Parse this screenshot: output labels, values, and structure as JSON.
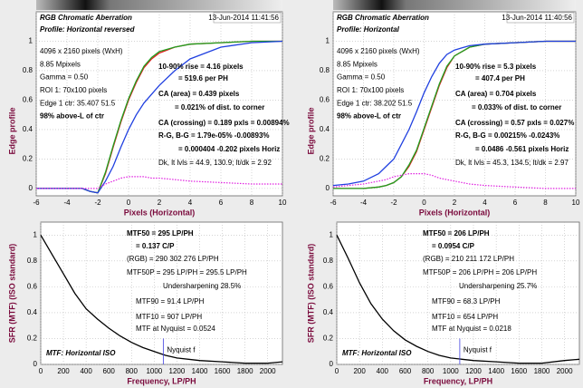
{
  "chart_data": [
    {
      "type": "line",
      "header": {
        "title": "RGB Chromatic Aberration",
        "date": "13-Jun-2014 11:41:56"
      },
      "profile": "Profile: Horizontal reversed",
      "info": [
        "4096 x 2160 pixels (WxH)",
        "8.85 Mpixels",
        "Gamma = 0.50",
        "ROI 1: 70x100 pixels",
        "Edge 1 ctr: 35.407  51.5",
        "98% above-L of ctr"
      ],
      "results": [
        {
          "text": "10-90% rise = 4.16 pixels",
          "color": "#000000"
        },
        {
          "text": "= 519.6 per PH",
          "color": "#000000"
        },
        {
          "text": "CA (area) = 0.439 pixels",
          "color": "#d020c0"
        },
        {
          "text": "= 0.021% of dist. to corner",
          "color": "#d020c0"
        },
        {
          "text": "CA (crossing) = 0.189 pxls = 0.00894%",
          "color": "#d020c0"
        },
        {
          "text": "R-G, B-G = 1.79e-05%  -0.00893%",
          "color": "#d020c0"
        },
        {
          "text": "= 0.000404  -0.202 pixels Horiz",
          "color": "#d020c0"
        },
        {
          "text": "Dk, lt lvls = 44.9, 130.9;  lt/dk = 2.92",
          "color": "#808080"
        }
      ],
      "xlabel": "Pixels (Horizontal)",
      "ylabel": "Edge profile",
      "x": [
        -6,
        -5,
        -4,
        -3,
        -2.5,
        -2,
        -1.5,
        -1,
        -0.5,
        0,
        0.5,
        1,
        1.5,
        2,
        3,
        4,
        6,
        8,
        10
      ],
      "series": [
        {
          "color": "#e02020",
          "style": "solid",
          "values": [
            0,
            0,
            0,
            0,
            -0.02,
            -0.03,
            0.1,
            0.28,
            0.45,
            0.6,
            0.72,
            0.82,
            0.88,
            0.92,
            0.96,
            0.98,
            0.99,
            1,
            1
          ]
        },
        {
          "color": "#20a020",
          "style": "solid",
          "values": [
            0,
            0,
            0,
            0,
            -0.02,
            -0.03,
            0.11,
            0.29,
            0.46,
            0.61,
            0.73,
            0.83,
            0.89,
            0.93,
            0.96,
            0.98,
            0.99,
            1,
            1
          ]
        },
        {
          "color": "#2040e0",
          "style": "solid",
          "values": [
            0,
            0,
            0,
            0,
            -0.02,
            -0.03,
            0.05,
            0.15,
            0.28,
            0.4,
            0.5,
            0.58,
            0.64,
            0.7,
            0.8,
            0.88,
            0.96,
            0.99,
            1
          ]
        },
        {
          "color": "#e020e0",
          "style": "dotted",
          "values": [
            0,
            0,
            0,
            0,
            0,
            0,
            0.03,
            0.05,
            0.07,
            0.08,
            0.08,
            0.08,
            0.07,
            0.07,
            0.06,
            0.05,
            0.04,
            0.03,
            0.03
          ]
        }
      ],
      "xlim": [
        -6,
        10
      ],
      "ylim": [
        -0.05,
        1.2
      ],
      "xticks": [
        -6,
        -4,
        -2,
        0,
        2,
        4,
        6,
        8,
        10
      ],
      "yticks": [
        0,
        0.2,
        0.4,
        0.6,
        0.8,
        1
      ],
      "grid": true
    },
    {
      "type": "line",
      "header": {
        "title": "RGB Chromatic Aberration",
        "date": "13-Jun-2014 11:40:56"
      },
      "profile": "Profile: Horizontal",
      "info": [
        "4096 x 2160 pixels (WxH)",
        "8.85 Mpixels",
        "Gamma = 0.50",
        "ROI 1: 70x100 pixels",
        "Edge 1 ctr: 38.202  51.5",
        "98% above-L of ctr"
      ],
      "results": [
        {
          "text": "10-90% rise = 5.3 pixels",
          "color": "#000000"
        },
        {
          "text": "= 407.4 per PH",
          "color": "#000000"
        },
        {
          "text": "CA (area) = 0.704 pixels",
          "color": "#d020c0"
        },
        {
          "text": "= 0.033% of dist. to corner",
          "color": "#d020c0"
        },
        {
          "text": "CA (crossing) = 0.57 pxls = 0.027%",
          "color": "#d020c0"
        },
        {
          "text": "R-G, B-G = 0.00215%  -0.0243%",
          "color": "#d020c0"
        },
        {
          "text": "= 0.0486  -0.561 pixels Horiz",
          "color": "#d020c0"
        },
        {
          "text": "Dk, lt lvls = 45.3, 134.5;  lt/dk = 2.97",
          "color": "#808080"
        }
      ],
      "xlabel": "Pixels (Horizontal)",
      "ylabel": "Edge profile",
      "x": [
        -6,
        -5,
        -4,
        -3,
        -2.5,
        -2,
        -1.5,
        -1,
        -0.5,
        0,
        0.5,
        1,
        1.5,
        2,
        3,
        4,
        6,
        8,
        10
      ],
      "series": [
        {
          "color": "#e02020",
          "style": "solid",
          "values": [
            0,
            0,
            0,
            0.01,
            0.02,
            0.04,
            0.08,
            0.15,
            0.25,
            0.4,
            0.55,
            0.7,
            0.82,
            0.9,
            0.96,
            0.98,
            0.99,
            1,
            1
          ]
        },
        {
          "color": "#20a020",
          "style": "solid",
          "values": [
            0,
            0,
            0,
            0.01,
            0.02,
            0.04,
            0.08,
            0.16,
            0.26,
            0.41,
            0.56,
            0.71,
            0.83,
            0.9,
            0.96,
            0.98,
            0.99,
            1,
            1
          ]
        },
        {
          "color": "#2040e0",
          "style": "solid",
          "values": [
            0.02,
            0.03,
            0.05,
            0.1,
            0.15,
            0.2,
            0.3,
            0.4,
            0.52,
            0.65,
            0.76,
            0.85,
            0.91,
            0.94,
            0.97,
            0.98,
            0.99,
            1,
            1
          ]
        },
        {
          "color": "#e020e0",
          "style": "dotted",
          "values": [
            0.01,
            0.02,
            0.03,
            0.05,
            0.06,
            0.08,
            0.09,
            0.1,
            0.1,
            0.1,
            0.09,
            0.07,
            0.06,
            0.05,
            0.03,
            0.02,
            0.01,
            0,
            0
          ]
        }
      ],
      "xlim": [
        -6,
        10
      ],
      "ylim": [
        -0.05,
        1.2
      ],
      "xticks": [
        -6,
        -4,
        -2,
        0,
        2,
        4,
        6,
        8,
        10
      ],
      "yticks": [
        0,
        0.2,
        0.4,
        0.6,
        0.8,
        1
      ],
      "grid": true
    },
    {
      "type": "line",
      "results": [
        {
          "text": "MTF50 = 295 LP/PH",
          "color": "#000000"
        },
        {
          "text": "= 0.137 C/P",
          "color": "#000000"
        },
        {
          "text": "(RGB) = 290  302  276 LP/PH",
          "color": "#d02020"
        },
        {
          "text": "MTF50P = 295 LP/PH = 295.5 LP/PH",
          "color": "#000000"
        },
        {
          "text": "Undersharpening 28.5%",
          "color": "#d02020"
        },
        {
          "text": "MTF90 = 91.4 LP/PH",
          "color": "#000000"
        },
        {
          "text": "MTF10 = 907 LP/PH",
          "color": "#000000"
        },
        {
          "text": "MTF at Nyquist = 0.0524",
          "color": "#404040"
        }
      ],
      "caption": "MTF: Horizontal ISO",
      "nyquist": {
        "x": 1080,
        "label": "Nyquist f",
        "color": "#4040e0"
      },
      "xlabel": "Frequency, LP/PH",
      "ylabel": "SFR (MTF) (ISO standard)",
      "x": [
        0,
        100,
        200,
        300,
        400,
        500,
        600,
        700,
        800,
        900,
        1000,
        1100,
        1200,
        1400,
        1600,
        1800,
        2000,
        2130
      ],
      "series": [
        {
          "color": "#000000",
          "style": "solid",
          "values": [
            1,
            0.85,
            0.7,
            0.55,
            0.43,
            0.35,
            0.28,
            0.22,
            0.17,
            0.13,
            0.1,
            0.07,
            0.05,
            0.03,
            0.02,
            0.01,
            0.01,
            0.02
          ]
        }
      ],
      "xlim": [
        0,
        2130
      ],
      "ylim": [
        0,
        1.1
      ],
      "xticks": [
        0,
        200,
        400,
        600,
        800,
        1000,
        1200,
        1400,
        1600,
        1800,
        2000
      ],
      "yticks": [
        0,
        0.2,
        0.4,
        0.6,
        0.8,
        1
      ],
      "grid": true
    },
    {
      "type": "line",
      "results": [
        {
          "text": "MTF50 = 206 LP/PH",
          "color": "#000000"
        },
        {
          "text": "= 0.0954 C/P",
          "color": "#000000"
        },
        {
          "text": "(RGB) = 210  211  172 LP/PH",
          "color": "#d02020"
        },
        {
          "text": "MTF50P = 206 LP/PH = 206 LP/PH",
          "color": "#000000"
        },
        {
          "text": "Undersharpening 25.7%",
          "color": "#d02020"
        },
        {
          "text": "MTF90 = 68.3 LP/PH",
          "color": "#000000"
        },
        {
          "text": "MTF10 = 654 LP/PH",
          "color": "#000000"
        },
        {
          "text": "MTF at Nyquist = 0.0218",
          "color": "#404040"
        }
      ],
      "caption": "MTF: Horizontal ISO",
      "nyquist": {
        "x": 1080,
        "label": "Nyquist f",
        "color": "#4040e0"
      },
      "xlabel": "Frequency, LP/PH",
      "ylabel": "SFR (MTF) (ISO standard)",
      "x": [
        0,
        100,
        200,
        300,
        400,
        500,
        600,
        700,
        800,
        900,
        1000,
        1100,
        1200,
        1400,
        1600,
        1800,
        2000,
        2130
      ],
      "series": [
        {
          "color": "#000000",
          "style": "solid",
          "values": [
            1,
            0.82,
            0.63,
            0.47,
            0.35,
            0.26,
            0.19,
            0.14,
            0.1,
            0.07,
            0.05,
            0.04,
            0.03,
            0.02,
            0.01,
            0.01,
            0.03,
            0.04
          ]
        }
      ],
      "xlim": [
        0,
        2130
      ],
      "ylim": [
        0,
        1.1
      ],
      "xticks": [
        0,
        200,
        400,
        600,
        800,
        1000,
        1200,
        1400,
        1600,
        1800,
        2000
      ],
      "yticks": [
        0,
        0.2,
        0.4,
        0.6,
        0.8,
        1
      ],
      "grid": true
    }
  ]
}
